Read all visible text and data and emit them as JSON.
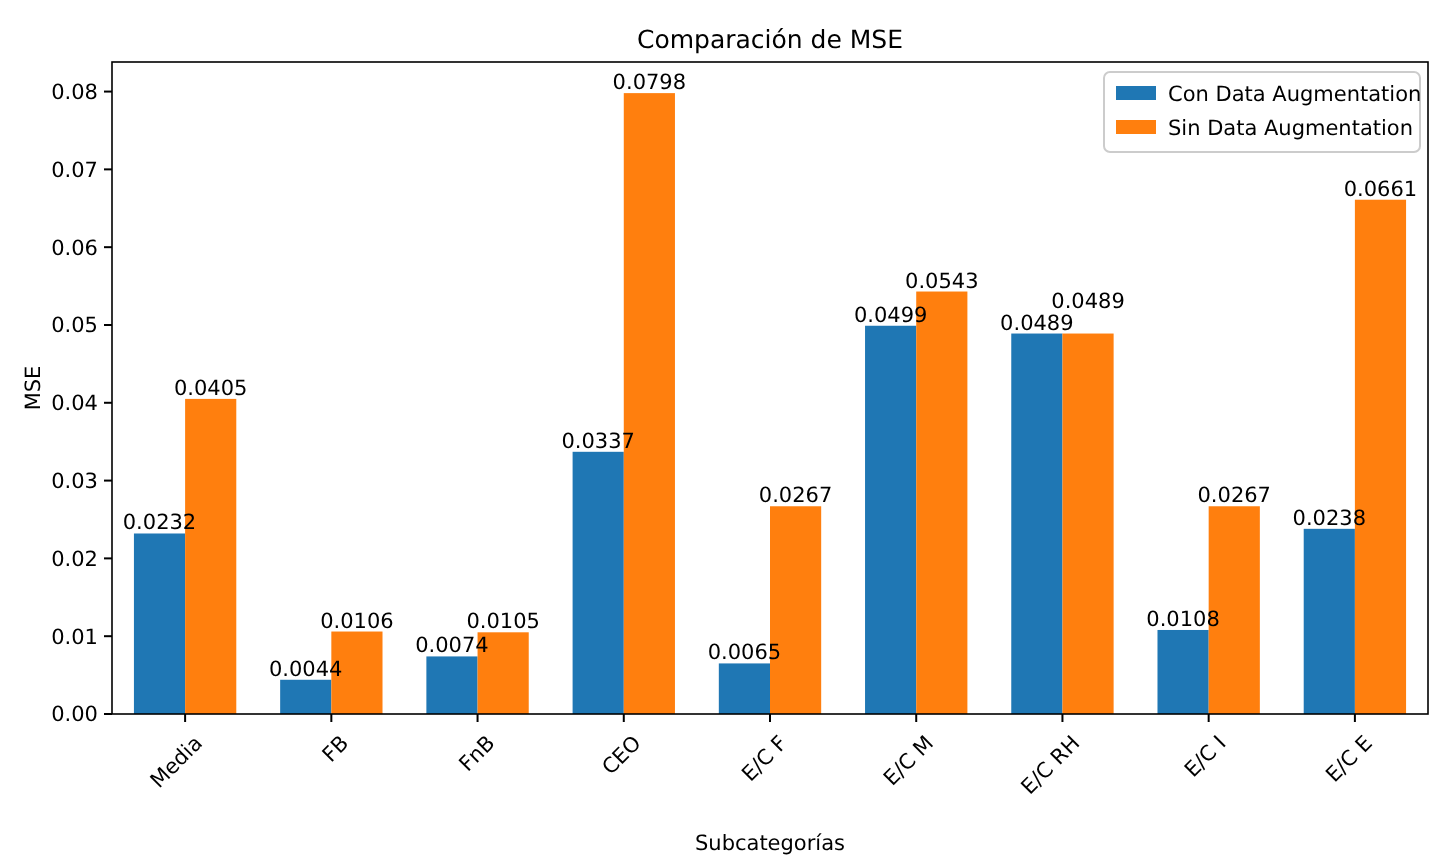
{
  "chart_data": {
    "type": "bar",
    "title": "Comparación de MSE",
    "xlabel": "Subcategorías",
    "ylabel": "MSE",
    "categories": [
      "Media",
      "FB",
      "FnB",
      "CEO",
      "E/C F",
      "E/C M",
      "E/C RH",
      "E/C I",
      "E/C E"
    ],
    "series": [
      {
        "name": "Con Data Augmentation",
        "color": "#1f77b4",
        "values": [
          0.0232,
          0.0044,
          0.0074,
          0.0337,
          0.0065,
          0.0499,
          0.0489,
          0.0108,
          0.0238
        ]
      },
      {
        "name": "Sin Data Augmentation",
        "color": "#ff7f0e",
        "values": [
          0.0405,
          0.0106,
          0.0105,
          0.0798,
          0.0267,
          0.0543,
          0.0489,
          0.0267,
          0.0661
        ]
      }
    ],
    "ylim": [
      0,
      0.0838
    ],
    "yticks": [
      {
        "value": 0,
        "label": "0.00"
      },
      {
        "value": 0.01,
        "label": "0.01"
      },
      {
        "value": 0.02,
        "label": "0.02"
      },
      {
        "value": 0.03,
        "label": "0.03"
      },
      {
        "value": 0.04,
        "label": "0.04"
      },
      {
        "value": 0.05,
        "label": "0.05"
      },
      {
        "value": 0.06,
        "label": "0.06"
      },
      {
        "value": 0.07,
        "label": "0.07"
      },
      {
        "value": 0.08,
        "label": "0.08"
      }
    ],
    "data_labels": true,
    "legend": "top right",
    "grid": false
  }
}
